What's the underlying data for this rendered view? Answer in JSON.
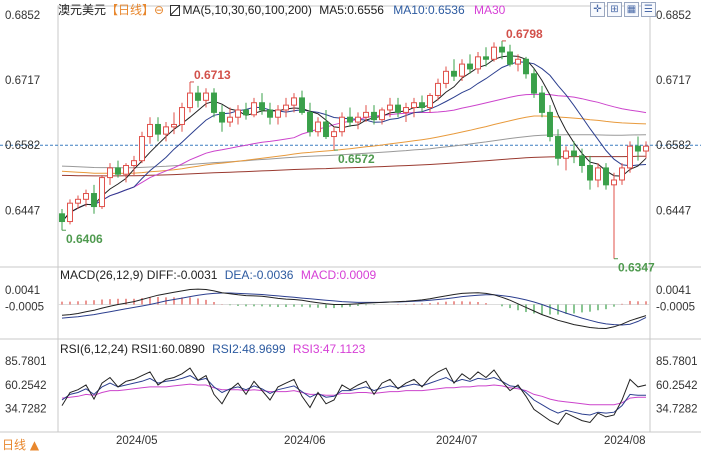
{
  "header": {
    "symbol": "澳元美元",
    "period_label": "【日线】",
    "settings_glyph": "⊖",
    "ma_icon": "candle-icon",
    "ma_params": "MA(5,10,30,60,100,200)",
    "ma5": "MA5:0.6556",
    "ma10": "MA10:0.6536",
    "ma30": "MA30"
  },
  "toolbar": [
    {
      "icon": "crosshair-icon",
      "glyph": "✛"
    },
    {
      "icon": "zoom-in-icon",
      "glyph": "⊞"
    },
    {
      "icon": "grid-icon",
      "glyph": "▦"
    },
    {
      "icon": "menu-icon",
      "glyph": "☰"
    }
  ],
  "macd_header": {
    "title": "MACD(26,12,9)",
    "diff": "DIFF:-0.0031",
    "dea": "DEA:-0.0036",
    "macd": "MACD:0.0009"
  },
  "rsi_header": {
    "title": "RSI(6,12,24)",
    "rsi1": "RSI1:60.0890",
    "rsi2": "RSI2:48.9699",
    "rsi3": "RSI3:47.1123"
  },
  "bottom_button": "日线 ▲",
  "colors": {
    "up": "#e0504a",
    "down": "#3aa04a",
    "ma5": "#222222",
    "ma10": "#2c3f8f",
    "ma30": "#cc44cc",
    "ma60": "#e89a3c",
    "ma100": "#999999",
    "ma200": "#9a3a30",
    "ref": "#3d7fc0"
  },
  "chart_data": {
    "type": "candlestick",
    "instrument": "澳元美元",
    "x_ticks": [
      "2024/05",
      "2024/06",
      "2024/07",
      "2024/08"
    ],
    "x_tick_index": [
      10,
      31,
      50,
      71
    ],
    "price_ticks": [
      "0.6852",
      "0.6717",
      "0.6582",
      "0.6447"
    ],
    "ylim": [
      0.6334,
      0.6862
    ],
    "reference_price": 0.6582,
    "annotations": [
      {
        "text": "0.6713",
        "index": 16,
        "value": 0.6713,
        "color": "up"
      },
      {
        "text": "0.6572",
        "index": 34,
        "value": 0.6572,
        "color": "down"
      },
      {
        "text": "0.6798",
        "index": 55,
        "value": 0.6798,
        "color": "up"
      },
      {
        "text": "0.6406",
        "index": 0,
        "value": 0.6406,
        "color": "down"
      },
      {
        "text": "0.6347",
        "index": 69,
        "value": 0.6347,
        "color": "down"
      }
    ],
    "ohlc": [
      [
        0.644,
        0.645,
        0.6406,
        0.6424
      ],
      [
        0.6424,
        0.647,
        0.6418,
        0.6462
      ],
      [
        0.6462,
        0.6478,
        0.645,
        0.647
      ],
      [
        0.647,
        0.649,
        0.6455,
        0.6482
      ],
      [
        0.6482,
        0.65,
        0.644,
        0.6455
      ],
      [
        0.6455,
        0.652,
        0.645,
        0.6515
      ],
      [
        0.6515,
        0.6545,
        0.65,
        0.6535
      ],
      [
        0.6535,
        0.655,
        0.6515,
        0.6522
      ],
      [
        0.6522,
        0.6545,
        0.6505,
        0.654
      ],
      [
        0.654,
        0.656,
        0.652,
        0.655
      ],
      [
        0.655,
        0.661,
        0.6545,
        0.66
      ],
      [
        0.66,
        0.664,
        0.6585,
        0.6625
      ],
      [
        0.6625,
        0.664,
        0.659,
        0.6605
      ],
      [
        0.6605,
        0.663,
        0.659,
        0.662
      ],
      [
        0.662,
        0.665,
        0.6605,
        0.6625
      ],
      [
        0.6625,
        0.667,
        0.661,
        0.666
      ],
      [
        0.666,
        0.6713,
        0.665,
        0.669
      ],
      [
        0.669,
        0.6705,
        0.666,
        0.6675
      ],
      [
        0.6675,
        0.67,
        0.666,
        0.669
      ],
      [
        0.669,
        0.67,
        0.664,
        0.665
      ],
      [
        0.665,
        0.6665,
        0.661,
        0.663
      ],
      [
        0.663,
        0.666,
        0.662,
        0.664
      ],
      [
        0.664,
        0.6665,
        0.6625,
        0.6655
      ],
      [
        0.6655,
        0.667,
        0.6635,
        0.6645
      ],
      [
        0.6645,
        0.668,
        0.664,
        0.667
      ],
      [
        0.667,
        0.669,
        0.6645,
        0.6655
      ],
      [
        0.6655,
        0.667,
        0.6625,
        0.664
      ],
      [
        0.664,
        0.6665,
        0.6625,
        0.6655
      ],
      [
        0.6655,
        0.668,
        0.664,
        0.6665
      ],
      [
        0.6665,
        0.669,
        0.665,
        0.668
      ],
      [
        0.668,
        0.6695,
        0.6645,
        0.665
      ],
      [
        0.665,
        0.667,
        0.66,
        0.661
      ],
      [
        0.661,
        0.664,
        0.66,
        0.663
      ],
      [
        0.663,
        0.6655,
        0.6595,
        0.66
      ],
      [
        0.66,
        0.662,
        0.6572,
        0.661
      ],
      [
        0.661,
        0.665,
        0.66,
        0.664
      ],
      [
        0.664,
        0.666,
        0.662,
        0.663
      ],
      [
        0.663,
        0.665,
        0.6615,
        0.664
      ],
      [
        0.664,
        0.6665,
        0.663,
        0.665
      ],
      [
        0.665,
        0.6665,
        0.6625,
        0.6635
      ],
      [
        0.6635,
        0.666,
        0.6625,
        0.6655
      ],
      [
        0.6655,
        0.668,
        0.664,
        0.6665
      ],
      [
        0.6665,
        0.668,
        0.664,
        0.665
      ],
      [
        0.665,
        0.667,
        0.663,
        0.666
      ],
      [
        0.666,
        0.668,
        0.664,
        0.667
      ],
      [
        0.667,
        0.6685,
        0.665,
        0.666
      ],
      [
        0.666,
        0.669,
        0.665,
        0.6685
      ],
      [
        0.6685,
        0.672,
        0.6675,
        0.671
      ],
      [
        0.671,
        0.6745,
        0.67,
        0.6735
      ],
      [
        0.6735,
        0.676,
        0.6715,
        0.6725
      ],
      [
        0.6725,
        0.676,
        0.6715,
        0.675
      ],
      [
        0.675,
        0.677,
        0.673,
        0.674
      ],
      [
        0.674,
        0.6775,
        0.673,
        0.6765
      ],
      [
        0.6765,
        0.6785,
        0.6745,
        0.676
      ],
      [
        0.676,
        0.6795,
        0.6755,
        0.6785
      ],
      [
        0.6785,
        0.6798,
        0.676,
        0.6775
      ],
      [
        0.6775,
        0.679,
        0.6745,
        0.675
      ],
      [
        0.675,
        0.677,
        0.6735,
        0.676
      ],
      [
        0.676,
        0.6765,
        0.672,
        0.673
      ],
      [
        0.673,
        0.674,
        0.668,
        0.669
      ],
      [
        0.669,
        0.6705,
        0.664,
        0.665
      ],
      [
        0.665,
        0.6665,
        0.659,
        0.66
      ],
      [
        0.66,
        0.6615,
        0.654,
        0.6555
      ],
      [
        0.6555,
        0.658,
        0.653,
        0.657
      ],
      [
        0.657,
        0.659,
        0.6545,
        0.656
      ],
      [
        0.656,
        0.6575,
        0.6525,
        0.654
      ],
      [
        0.654,
        0.656,
        0.649,
        0.651
      ],
      [
        0.651,
        0.6545,
        0.6495,
        0.6535
      ],
      [
        0.6535,
        0.6545,
        0.649,
        0.65
      ],
      [
        0.65,
        0.6525,
        0.6347,
        0.651
      ],
      [
        0.651,
        0.6545,
        0.65,
        0.6535
      ],
      [
        0.6535,
        0.659,
        0.6525,
        0.658
      ],
      [
        0.658,
        0.66,
        0.655,
        0.657
      ],
      [
        0.657,
        0.659,
        0.6555,
        0.658
      ]
    ],
    "macd": {
      "ticks": [
        "0.0041",
        "-0.0005"
      ],
      "ylim": [
        -0.0085,
        0.006
      ],
      "diff": [
        -0.003,
        -0.0028,
        -0.0025,
        -0.002,
        -0.0016,
        -0.001,
        -0.0005,
        0.0,
        0.0004,
        0.0008,
        0.0014,
        0.002,
        0.0026,
        0.003,
        0.0034,
        0.0038,
        0.0042,
        0.0043,
        0.0042,
        0.0038,
        0.0033,
        0.003,
        0.0027,
        0.0025,
        0.0024,
        0.0023,
        0.002,
        0.0017,
        0.0015,
        0.0014,
        0.0012,
        0.0008,
        0.0005,
        0.0002,
        0.0,
        0.0,
        0.0001,
        0.0002,
        0.0004,
        0.0005,
        0.0006,
        0.0007,
        0.0008,
        0.0009,
        0.0011,
        0.0013,
        0.0016,
        0.002,
        0.0024,
        0.0028,
        0.0031,
        0.0032,
        0.0033,
        0.0031,
        0.0027,
        0.002,
        0.0012,
        0.0002,
        -0.0008,
        -0.0018,
        -0.0028,
        -0.0036,
        -0.0044,
        -0.005,
        -0.0056,
        -0.006,
        -0.0064,
        -0.0066,
        -0.0067,
        -0.0062,
        -0.0055,
        -0.0045,
        -0.0038,
        -0.0031
      ],
      "dea": [
        -0.0038,
        -0.0036,
        -0.0034,
        -0.0031,
        -0.0028,
        -0.0024,
        -0.002,
        -0.0016,
        -0.0012,
        -0.0008,
        -0.0004,
        0.0,
        0.0005,
        0.001,
        0.0014,
        0.0018,
        0.0022,
        0.0026,
        0.0029,
        0.0031,
        0.0032,
        0.0032,
        0.0031,
        0.003,
        0.0029,
        0.0028,
        0.0026,
        0.0024,
        0.0022,
        0.002,
        0.0018,
        0.0016,
        0.0014,
        0.0012,
        0.001,
        0.0008,
        0.0007,
        0.0006,
        0.0006,
        0.0006,
        0.0006,
        0.0007,
        0.0007,
        0.0008,
        0.0009,
        0.001,
        0.0012,
        0.0014,
        0.0016,
        0.0019,
        0.0022,
        0.0024,
        0.0026,
        0.0027,
        0.0027,
        0.0025,
        0.0022,
        0.0018,
        0.0013,
        0.0007,
        0.0,
        -0.0008,
        -0.0016,
        -0.0024,
        -0.0031,
        -0.0038,
        -0.0044,
        -0.005,
        -0.0054,
        -0.0056,
        -0.0057,
        -0.0055,
        -0.0047,
        -0.0036
      ],
      "hist": [
        0.0008,
        0.0008,
        0.0009,
        0.0011,
        0.0012,
        0.0014,
        0.0015,
        0.0016,
        0.0016,
        0.0016,
        0.0018,
        0.002,
        0.0021,
        0.002,
        0.002,
        0.002,
        0.002,
        0.0017,
        0.0013,
        0.0007,
        0.0001,
        -0.0002,
        -0.0004,
        -0.0005,
        -0.0005,
        -0.0005,
        -0.0006,
        -0.0007,
        -0.0007,
        -0.0006,
        -0.0006,
        -0.0008,
        -0.0009,
        -0.001,
        -0.001,
        -0.0008,
        -0.0006,
        -0.0004,
        -0.0002,
        -0.0001,
        0.0,
        0.0,
        0.0001,
        0.0001,
        0.0002,
        0.0003,
        0.0004,
        0.0006,
        0.0008,
        0.0009,
        0.0009,
        0.0008,
        0.0007,
        0.0004,
        0.0,
        -0.0005,
        -0.001,
        -0.0016,
        -0.0021,
        -0.0025,
        -0.0028,
        -0.0028,
        -0.0028,
        -0.0026,
        -0.0025,
        -0.0022,
        -0.002,
        -0.0016,
        -0.0013,
        -0.0006,
        0.0002,
        0.001,
        0.0009,
        0.0009
      ]
    },
    "rsi": {
      "ticks": [
        "85.7801",
        "60.2542",
        "34.7282"
      ],
      "ylim": [
        12,
        92
      ],
      "rsi1": [
        38,
        52,
        55,
        60,
        45,
        62,
        68,
        58,
        64,
        66,
        70,
        74,
        60,
        66,
        68,
        72,
        78,
        65,
        70,
        50,
        40,
        55,
        62,
        50,
        64,
        54,
        44,
        58,
        62,
        66,
        48,
        36,
        52,
        40,
        44,
        60,
        55,
        60,
        64,
        50,
        62,
        66,
        56,
        62,
        66,
        58,
        68,
        74,
        78,
        62,
        72,
        66,
        74,
        68,
        76,
        64,
        54,
        60,
        48,
        34,
        28,
        22,
        18,
        30,
        26,
        22,
        20,
        30,
        26,
        28,
        44,
        66,
        58,
        60
      ],
      "rsi2": [
        44,
        50,
        52,
        56,
        50,
        58,
        62,
        58,
        60,
        62,
        64,
        67,
        62,
        64,
        65,
        67,
        70,
        65,
        67,
        58,
        52,
        56,
        58,
        55,
        59,
        56,
        51,
        55,
        57,
        59,
        53,
        47,
        51,
        47,
        48,
        54,
        54,
        56,
        58,
        54,
        57,
        59,
        57,
        59,
        61,
        59,
        62,
        65,
        68,
        63,
        66,
        64,
        67,
        66,
        68,
        64,
        59,
        58,
        52,
        44,
        39,
        34,
        30,
        33,
        31,
        29,
        28,
        31,
        30,
        31,
        38,
        50,
        49,
        49
      ],
      "rsi3": [
        46,
        47,
        48,
        50,
        49,
        52,
        54,
        54,
        55,
        56,
        57,
        58,
        58,
        58,
        59,
        60,
        61,
        60,
        60,
        57,
        55,
        55,
        55,
        54,
        55,
        54,
        53,
        53,
        53,
        54,
        52,
        50,
        50,
        49,
        49,
        51,
        51,
        52,
        52,
        51,
        52,
        53,
        53,
        54,
        54,
        54,
        55,
        56,
        57,
        57,
        58,
        58,
        59,
        59,
        60,
        59,
        57,
        56,
        54,
        50,
        48,
        45,
        43,
        42,
        41,
        40,
        39,
        39,
        39,
        39,
        41,
        46,
        47,
        47
      ]
    }
  }
}
